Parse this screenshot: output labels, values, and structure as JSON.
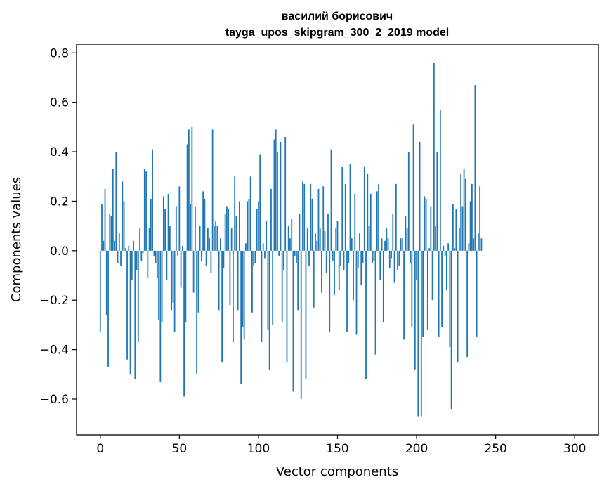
{
  "chart_data": {
    "type": "bar",
    "title": [
      "василий борисович",
      "tayga_upos_skipgram_300_2_2019 model"
    ],
    "xlabel": "Vector components",
    "ylabel": "Components values",
    "xlim": [
      -15,
      315
    ],
    "ylim": [
      -0.745,
      0.835
    ],
    "xticks": [
      0,
      50,
      100,
      150,
      200,
      250,
      300
    ],
    "xtick_labels": [
      "0",
      "50",
      "100",
      "150",
      "200",
      "250",
      "300"
    ],
    "yticks": [
      -0.6,
      -0.4,
      -0.2,
      0.0,
      0.2,
      0.4,
      0.6,
      0.8
    ],
    "ytick_labels": [
      "−0.6",
      "−0.4",
      "−0.2",
      "0.0",
      "0.2",
      "0.4",
      "0.6",
      "0.8"
    ],
    "bar_color": "#1f77b4",
    "values": [
      -0.33,
      0.19,
      0.04,
      0.25,
      -0.26,
      -0.47,
      0.15,
      0.14,
      0.33,
      0.04,
      0.4,
      -0.05,
      0.07,
      -0.06,
      0.28,
      0.2,
      0.01,
      -0.44,
      0.02,
      -0.5,
      -0.12,
      0.04,
      -0.52,
      -0.08,
      -0.37,
      0.09,
      -0.04,
      -0.01,
      0.33,
      0.32,
      -0.11,
      0.09,
      0.21,
      0.41,
      -0.02,
      -0.05,
      -0.11,
      -0.28,
      -0.53,
      -0.29,
      0.22,
      0.17,
      -0.12,
      0.23,
      0.1,
      -0.24,
      -0.21,
      -0.33,
      0.18,
      -0.02,
      0.26,
      -0.15,
      0.02,
      -0.59,
      -0.29,
      0.43,
      0.49,
      0.19,
      0.5,
      -0.17,
      0.18,
      -0.5,
      -0.25,
      0.1,
      -0.04,
      0.24,
      0.21,
      -0.06,
      0.09,
      0.05,
      -0.09,
      0.49,
      0.1,
      0.12,
      0.1,
      -0.24,
      0.05,
      -0.45,
      -0.07,
      0.15,
      0.18,
      0.17,
      -0.22,
      0.09,
      -0.37,
      0.3,
      0.14,
      -0.24,
      0.2,
      -0.54,
      -0.31,
      -0.36,
      0.03,
      0.2,
      0.21,
      0.3,
      -0.25,
      -0.06,
      -0.05,
      0.17,
      0.2,
      0.39,
      -0.37,
      0.03,
      -0.03,
      0.12,
      -0.32,
      -0.48,
      0.25,
      -0.3,
      0.45,
      0.49,
      0.4,
      -0.02,
      0.44,
      -0.29,
      -0.08,
      0.46,
      -0.45,
      0.1,
      0.05,
      0.13,
      -0.57,
      -0.02,
      -0.05,
      -0.24,
      0.15,
      -0.6,
      0.28,
      0.27,
      -0.52,
      0.09,
      -0.06,
      0.27,
      0.21,
      -0.23,
      0.07,
      0.04,
      0.25,
      0.09,
      -0.17,
      0.26,
      0.08,
      -0.09,
      0.15,
      -0.33,
      0.41,
      -0.04,
      -0.18,
      0.09,
      0.12,
      -0.16,
      -0.06,
      0.34,
      -0.08,
      0.27,
      -0.33,
      -0.05,
      0.35,
      0.05,
      -0.2,
      0.23,
      -0.34,
      -0.07,
      0.07,
      -0.14,
      -0.05,
      0.34,
      -0.52,
      0.31,
      0.1,
      0.23,
      -0.05,
      -0.04,
      -0.42,
      0.24,
      0.27,
      -0.12,
      0.05,
      -0.29,
      0.04,
      0.09,
      0.05,
      -0.07,
      -0.03,
      0.15,
      -0.13,
      0.27,
      -0.08,
      -0.06,
      0.05,
      0.05,
      -0.36,
      0.14,
      0.09,
      0.4,
      -0.05,
      -0.31,
      0.51,
      -0.48,
      -0.12,
      -0.67,
      0.44,
      -0.67,
      -0.35,
      0.22,
      0.21,
      -0.32,
      0.01,
      0.18,
      -0.2,
      0.76,
      0.1,
      0.4,
      -0.35,
      0.57,
      -0.31,
      0.02,
      -0.02,
      -0.16,
      0.03,
      -0.39,
      -0.64,
      0.19,
      0.01,
      0.17,
      -0.45,
      0.09,
      0.31,
      0.18,
      0.33,
      0.29,
      -0.43,
      0.03,
      0.2,
      0.27,
      0.05,
      0.67,
      -0.35,
      0.07,
      0.26,
      0.05
    ]
  }
}
